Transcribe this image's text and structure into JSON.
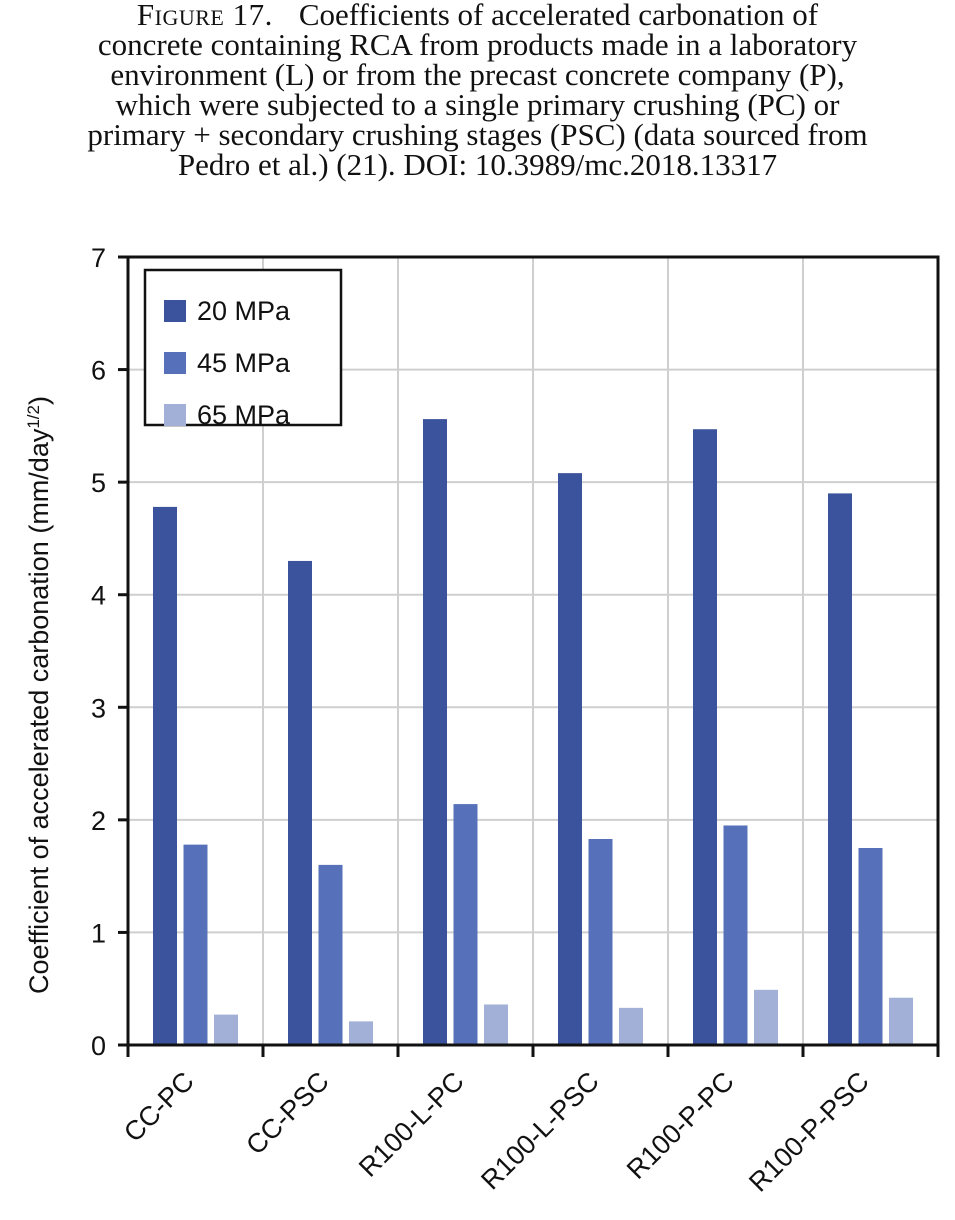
{
  "caption": {
    "label": "Figure 17.",
    "lines": [
      "Coefficients of accelerated carbonation of",
      "concrete containing RCA from products made in a laboratory",
      "environment (L) or from the precast concrete company (P),",
      "which were subjected to a single primary crushing (PC) or",
      "primary + secondary crushing stages (PSC) (data sourced from",
      "Pedro et al.) (21). DOI: 10.3989/mc.2018.13317"
    ]
  },
  "chart_data": {
    "type": "bar",
    "ylabel": "Coefficient of accelerated carbonation (mm/day",
    "ylabel_superscript": "1/2",
    "ylabel_suffix": ")",
    "xlabel": "",
    "ylim": [
      0,
      7
    ],
    "yticks": [
      "0",
      "1",
      "2",
      "3",
      "4",
      "5",
      "6",
      "7"
    ],
    "grid": true,
    "legend": "top-left",
    "categories": [
      "CC-PC",
      "CC-PSC",
      "R100-L-PC",
      "R100-L-PSC",
      "R100-P-PC",
      "R100-P-PSC"
    ],
    "series": [
      {
        "name": "20 MPa",
        "color": "#3b539c",
        "values": [
          4.78,
          4.3,
          5.56,
          5.08,
          5.47,
          4.9
        ]
      },
      {
        "name": "45 MPa",
        "color": "#5670b9",
        "values": [
          1.78,
          1.6,
          2.14,
          1.83,
          1.95,
          1.75
        ]
      },
      {
        "name": "65 MPa",
        "color": "#a2b0d8",
        "values": [
          0.27,
          0.21,
          0.36,
          0.33,
          0.49,
          0.42
        ]
      }
    ]
  }
}
